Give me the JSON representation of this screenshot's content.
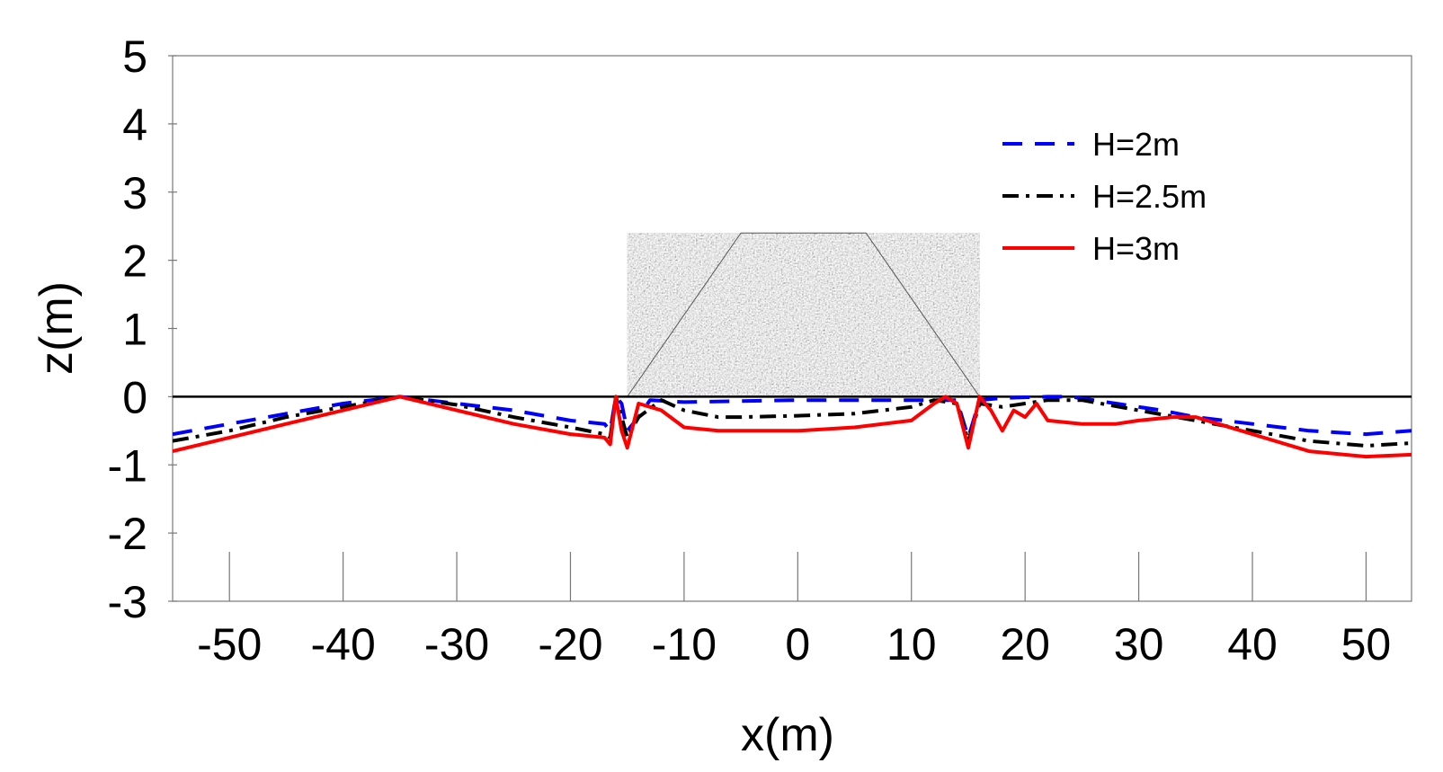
{
  "chart_data": {
    "type": "line",
    "title": "",
    "xlabel": "x(m)",
    "ylabel": "z(m)",
    "xlim": [
      -55,
      54
    ],
    "ylim": [
      -3,
      5
    ],
    "xticks": [
      -50,
      -40,
      -30,
      -20,
      -10,
      0,
      10,
      20,
      30,
      40,
      50
    ],
    "yticks": [
      5,
      4,
      3,
      2,
      1,
      0,
      -1,
      -2,
      -3
    ],
    "grid": false,
    "legend_position": "top-right",
    "structure": {
      "shape": "trapezoid",
      "base": [
        -15,
        16
      ],
      "crest": [
        -5,
        6
      ],
      "height": 2.4
    },
    "series": [
      {
        "name": "H=2m",
        "color": "#0000ff",
        "dash": "long-dash",
        "points": [
          [
            -55,
            -0.55
          ],
          [
            -50,
            -0.4
          ],
          [
            -45,
            -0.25
          ],
          [
            -40,
            -0.1
          ],
          [
            -35,
            0
          ],
          [
            -30,
            -0.1
          ],
          [
            -25,
            -0.2
          ],
          [
            -20,
            -0.35
          ],
          [
            -17,
            -0.4
          ],
          [
            -16.5,
            -0.5
          ],
          [
            -16,
            0
          ],
          [
            -15.5,
            -0.1
          ],
          [
            -15,
            -0.5
          ],
          [
            -14,
            -0.3
          ],
          [
            -13,
            -0.05
          ],
          [
            -10,
            -0.08
          ],
          [
            0,
            -0.05
          ],
          [
            10,
            -0.05
          ],
          [
            13,
            -0.05
          ],
          [
            14,
            -0.05
          ],
          [
            15,
            -0.6
          ],
          [
            16,
            -0.05
          ],
          [
            18,
            -0.02
          ],
          [
            22,
            0
          ],
          [
            24,
            0
          ],
          [
            28,
            -0.1
          ],
          [
            32,
            -0.2
          ],
          [
            35,
            -0.3
          ],
          [
            40,
            -0.4
          ],
          [
            45,
            -0.5
          ],
          [
            50,
            -0.55
          ],
          [
            54,
            -0.5
          ]
        ]
      },
      {
        "name": "H=2.5m",
        "color": "#000000",
        "dash": "dash-dot",
        "points": [
          [
            -55,
            -0.65
          ],
          [
            -50,
            -0.5
          ],
          [
            -45,
            -0.3
          ],
          [
            -40,
            -0.15
          ],
          [
            -35,
            0
          ],
          [
            -30,
            -0.12
          ],
          [
            -25,
            -0.3
          ],
          [
            -20,
            -0.45
          ],
          [
            -17,
            -0.55
          ],
          [
            -16.5,
            -0.6
          ],
          [
            -16,
            0
          ],
          [
            -15.5,
            -0.3
          ],
          [
            -15,
            -0.6
          ],
          [
            -14,
            -0.3
          ],
          [
            -12,
            -0.05
          ],
          [
            -10,
            -0.2
          ],
          [
            -7,
            -0.3
          ],
          [
            -5,
            -0.3
          ],
          [
            0,
            -0.28
          ],
          [
            5,
            -0.25
          ],
          [
            10,
            -0.15
          ],
          [
            12,
            -0.05
          ],
          [
            14,
            -0.1
          ],
          [
            15,
            -0.65
          ],
          [
            16,
            -0.1
          ],
          [
            18,
            -0.15
          ],
          [
            20,
            -0.1
          ],
          [
            22,
            -0.05
          ],
          [
            25,
            -0.05
          ],
          [
            30,
            -0.2
          ],
          [
            35,
            -0.35
          ],
          [
            40,
            -0.5
          ],
          [
            45,
            -0.65
          ],
          [
            50,
            -0.72
          ],
          [
            54,
            -0.68
          ]
        ]
      },
      {
        "name": "H=3m",
        "color": "#ff0000",
        "dash": "solid",
        "points": [
          [
            -55,
            -0.8
          ],
          [
            -50,
            -0.6
          ],
          [
            -45,
            -0.4
          ],
          [
            -40,
            -0.2
          ],
          [
            -35,
            0
          ],
          [
            -30,
            -0.2
          ],
          [
            -25,
            -0.4
          ],
          [
            -20,
            -0.55
          ],
          [
            -17,
            -0.6
          ],
          [
            -16.5,
            -0.7
          ],
          [
            -16,
            0
          ],
          [
            -15.5,
            -0.5
          ],
          [
            -15,
            -0.75
          ],
          [
            -14,
            -0.1
          ],
          [
            -12,
            -0.2
          ],
          [
            -10,
            -0.45
          ],
          [
            -7,
            -0.5
          ],
          [
            -5,
            -0.5
          ],
          [
            0,
            -0.5
          ],
          [
            5,
            -0.45
          ],
          [
            10,
            -0.35
          ],
          [
            12,
            -0.1
          ],
          [
            13,
            0
          ],
          [
            14,
            -0.1
          ],
          [
            15,
            -0.75
          ],
          [
            16,
            0
          ],
          [
            17,
            -0.2
          ],
          [
            18,
            -0.5
          ],
          [
            19,
            -0.2
          ],
          [
            20,
            -0.3
          ],
          [
            21,
            -0.1
          ],
          [
            22,
            -0.35
          ],
          [
            25,
            -0.4
          ],
          [
            28,
            -0.4
          ],
          [
            30,
            -0.35
          ],
          [
            33,
            -0.3
          ],
          [
            35,
            -0.3
          ],
          [
            40,
            -0.55
          ],
          [
            45,
            -0.8
          ],
          [
            50,
            -0.88
          ],
          [
            54,
            -0.85
          ]
        ]
      }
    ]
  }
}
